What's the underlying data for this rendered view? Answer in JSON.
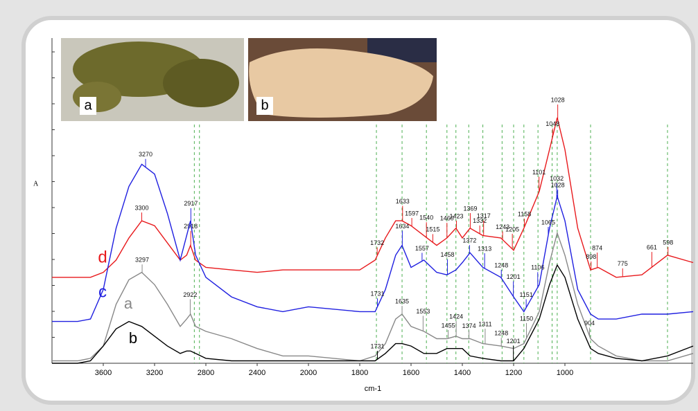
{
  "chart_data": {
    "type": "line",
    "x_label": "cm-1",
    "y_label": "A",
    "insets": [
      "a",
      "b"
    ],
    "x": [
      4000,
      3800,
      3700,
      3600,
      3500,
      3400,
      3300,
      3200,
      3100,
      3000,
      2950,
      2920,
      2880,
      2800,
      2600,
      2400,
      2200,
      2000,
      1800,
      1740,
      1700,
      1660,
      1635,
      1600,
      1550,
      1500,
      1460,
      1425,
      1400,
      1370,
      1320,
      1250,
      1200,
      1160,
      1100,
      1060,
      1030,
      1000,
      950,
      900,
      870,
      800,
      700,
      600,
      500
    ],
    "xlim": [
      4000,
      500
    ],
    "x_break": 2000,
    "x_break_stretch": 2,
    "xticks": [
      3600,
      3200,
      2800,
      2400,
      2000,
      1800,
      1600,
      1400,
      1200,
      1000
    ],
    "ylim": [
      0,
      100
    ],
    "reference_lines": [
      2890,
      2850,
      1735,
      1635,
      1540,
      1460,
      1425,
      1375,
      1320,
      1245,
      1200,
      1160,
      1105,
      1050,
      1030,
      900,
      600
    ],
    "series": [
      {
        "name": "d",
        "color": "#e8191c",
        "values": [
          35,
          35,
          35,
          37,
          42,
          51,
          58,
          56,
          49,
          42,
          44,
          48,
          42,
          39,
          38,
          37,
          38,
          38,
          38,
          42,
          51,
          58,
          58,
          56,
          52,
          48,
          51,
          55,
          51,
          55,
          52,
          51,
          46,
          55,
          70,
          87,
          100,
          87,
          55,
          38,
          39,
          35,
          36,
          44,
          41
        ],
        "peaks": [
          3300,
          2918,
          1732,
          1633,
          1597,
          1540,
          1515,
          1460,
          1423,
          1369,
          1332,
          1317,
          1243,
          1205,
          1158,
          1101,
          1048,
          1028,
          898,
          874,
          775,
          661,
          598
        ]
      },
      {
        "name": "c",
        "color": "#1f1fe0",
        "values": [
          17,
          17,
          18,
          30,
          55,
          72,
          81,
          77,
          61,
          42,
          52,
          58,
          44,
          35,
          27,
          23,
          21,
          23,
          21,
          21,
          30,
          44,
          48,
          39,
          42,
          37,
          36,
          38,
          41,
          45,
          39,
          35,
          27,
          21,
          32,
          55,
          68,
          58,
          30,
          20,
          18,
          18,
          20,
          20,
          21
        ],
        "peaks": [
          3270,
          2917,
          1731,
          1634,
          1557,
          1458,
          1372,
          1313,
          1248,
          1201,
          1151,
          1106,
          1065,
          1032,
          1028
        ]
      },
      {
        "name": "a",
        "color": "#888888",
        "values": [
          1,
          1,
          2,
          7,
          24,
          34,
          37,
          32,
          24,
          15,
          18,
          20,
          15,
          13,
          10,
          6,
          3,
          3,
          1,
          3,
          8,
          18,
          20,
          15,
          13,
          10,
          10,
          11,
          10,
          10,
          8,
          7,
          6,
          8,
          21,
          41,
          53,
          44,
          24,
          10,
          7,
          3,
          1,
          1,
          4
        ],
        "peaks": [
          3297,
          2922,
          1635,
          1553,
          1455,
          1424,
          1374,
          1311,
          1248,
          1150,
          904
        ]
      },
      {
        "name": "b",
        "color": "#000000",
        "values": [
          0,
          0,
          1,
          7,
          14,
          17,
          15,
          11,
          7,
          4,
          5,
          5,
          4,
          2,
          1,
          1,
          1,
          1,
          1,
          1,
          4,
          8,
          8,
          7,
          4,
          4,
          6,
          6,
          6,
          3,
          2,
          1,
          1,
          6,
          18,
          32,
          40,
          35,
          18,
          6,
          4,
          2,
          1,
          3,
          7
        ],
        "peaks": [
          1731,
          1201
        ]
      }
    ]
  }
}
